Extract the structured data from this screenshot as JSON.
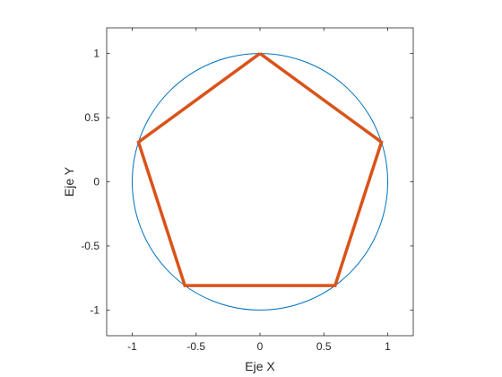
{
  "chart_data": {
    "type": "line",
    "title": "",
    "xlabel": "Eje X",
    "ylabel": "Eje Y",
    "xlim": [
      -1.2,
      1.2
    ],
    "ylim": [
      -1.2,
      1.2
    ],
    "aspect": "equal",
    "grid": false,
    "box": true,
    "xticks": [
      -1,
      -0.5,
      0,
      0.5,
      1
    ],
    "xtick_labels": [
      "-1",
      "-0.5",
      "0",
      "0.5",
      "1"
    ],
    "yticks": [
      -1,
      -0.5,
      0,
      0.5,
      1
    ],
    "ytick_labels": [
      "-1",
      "-0.5",
      "0",
      "0.5",
      "1"
    ],
    "series": [
      {
        "kind": "circle",
        "center": [
          0,
          0
        ],
        "radius": 1,
        "color": "#0072BD"
      },
      {
        "kind": "polygon",
        "color": "#D95319",
        "x": [
          0,
          0.951,
          0.588,
          -0.588,
          -0.951,
          0
        ],
        "y": [
          1,
          0.309,
          -0.809,
          -0.809,
          0.309,
          1
        ]
      }
    ]
  }
}
